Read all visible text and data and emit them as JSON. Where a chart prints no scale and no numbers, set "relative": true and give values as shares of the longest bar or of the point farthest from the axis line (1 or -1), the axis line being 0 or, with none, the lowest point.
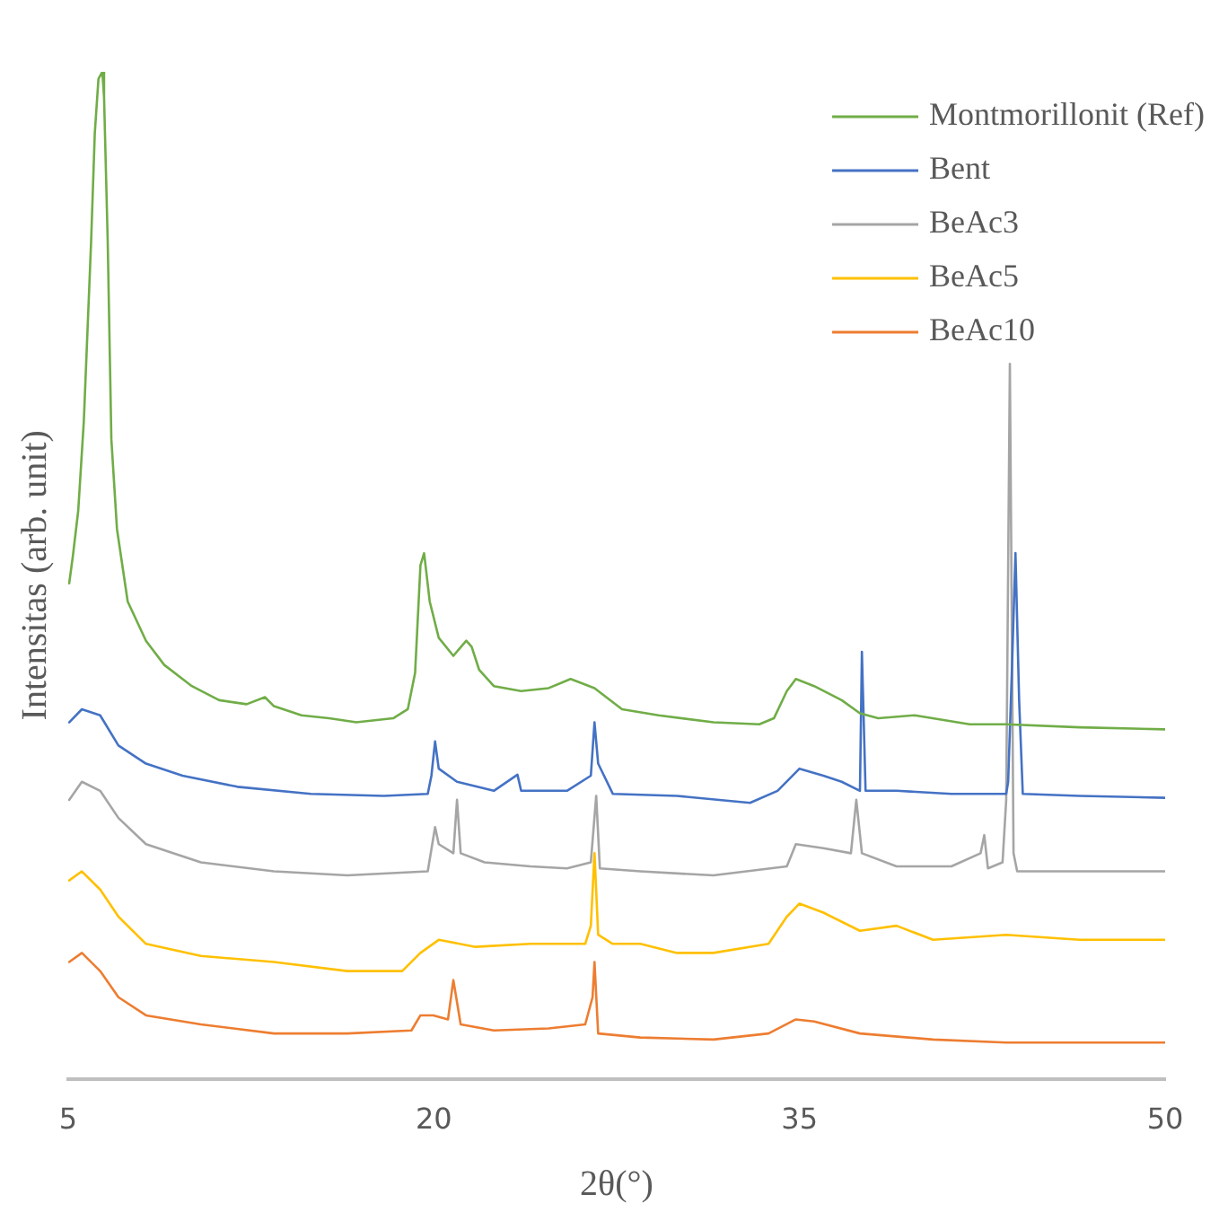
{
  "chart_data": {
    "type": "line",
    "xlabel": "2θ(°)",
    "ylabel": "Intensitas (arb. unit)",
    "relative": true,
    "xlim": [
      5,
      50
    ],
    "xticks": [
      5,
      20,
      35,
      50
    ],
    "grid": false,
    "legend": "top right",
    "marker": "none",
    "line_style": "solid",
    "series": [
      {
        "name": "Montmorillonit (Ref)",
        "color": "#70ad47",
        "x": [
          5.04,
          5.19,
          5.41,
          5.64,
          5.94,
          6.09,
          6.24,
          6.4,
          6.47,
          6.62,
          6.77,
          7.0,
          7.44,
          8.19,
          8.94,
          10.07,
          11.19,
          12.32,
          13.07,
          13.44,
          14.57,
          15.7,
          16.82,
          18.33,
          18.93,
          19.23,
          19.45,
          19.6,
          19.83,
          20.2,
          20.8,
          21.33,
          21.55,
          21.86,
          22.46,
          23.58,
          24.71,
          25.61,
          26.59,
          27.72,
          29.22,
          31.47,
          33.35,
          33.95,
          34.48,
          34.85,
          35.6,
          36.73,
          37.48,
          38.23,
          39.73,
          41.98,
          43.48,
          46.49,
          50
        ],
        "values": [
          0.492,
          0.519,
          0.564,
          0.653,
          0.832,
          0.939,
          0.993,
          1,
          0.975,
          0.832,
          0.635,
          0.546,
          0.474,
          0.435,
          0.411,
          0.39,
          0.376,
          0.372,
          0.379,
          0.37,
          0.361,
          0.358,
          0.354,
          0.358,
          0.367,
          0.403,
          0.51,
          0.522,
          0.474,
          0.438,
          0.42,
          0.435,
          0.429,
          0.406,
          0.39,
          0.385,
          0.388,
          0.397,
          0.388,
          0.367,
          0.361,
          0.354,
          0.352,
          0.358,
          0.385,
          0.397,
          0.39,
          0.376,
          0.363,
          0.358,
          0.361,
          0.352,
          0.352,
          0.349,
          0.347
        ]
      },
      {
        "name": "Bent",
        "color": "#4472c4",
        "x": [
          5.04,
          5.56,
          6.31,
          7.06,
          8.19,
          9.69,
          11.94,
          14.95,
          17.95,
          19.75,
          19.9,
          20.05,
          20.2,
          20.95,
          22.46,
          23.43,
          23.58,
          25.46,
          26.44,
          26.59,
          26.74,
          27.34,
          29.97,
          32.97,
          34.1,
          35.0,
          35.98,
          36.73,
          37.48,
          37.56,
          37.71,
          38.98,
          41.23,
          43.48,
          43.56,
          43.71,
          43.86,
          44.01,
          44.16,
          46.49,
          50
        ],
        "values": [
          0.354,
          0.367,
          0.361,
          0.331,
          0.313,
          0.301,
          0.29,
          0.283,
          0.281,
          0.283,
          0.301,
          0.335,
          0.308,
          0.295,
          0.286,
          0.302,
          0.286,
          0.286,
          0.301,
          0.354,
          0.313,
          0.283,
          0.281,
          0.274,
          0.286,
          0.308,
          0.301,
          0.295,
          0.286,
          0.424,
          0.286,
          0.286,
          0.283,
          0.283,
          0.295,
          0.403,
          0.522,
          0.376,
          0.283,
          0.281,
          0.279
        ]
      },
      {
        "name": "BeAc3",
        "color": "#a5a5a5",
        "x": [
          5.04,
          5.56,
          6.31,
          7.06,
          8.19,
          10.44,
          13.44,
          16.45,
          19.75,
          20.05,
          20.2,
          20.8,
          20.95,
          21.1,
          22.08,
          23.96,
          25.46,
          26.44,
          26.66,
          26.81,
          28.47,
          31.47,
          34.48,
          34.85,
          35.98,
          37.11,
          37.33,
          37.56,
          38.98,
          41.23,
          42.43,
          42.58,
          42.73,
          43.33,
          43.48,
          43.63,
          43.78,
          43.93,
          46.49,
          50
        ],
        "values": [
          0.277,
          0.295,
          0.286,
          0.259,
          0.233,
          0.215,
          0.206,
          0.202,
          0.206,
          0.25,
          0.233,
          0.224,
          0.277,
          0.224,
          0.215,
          0.211,
          0.209,
          0.215,
          0.281,
          0.209,
          0.206,
          0.202,
          0.211,
          0.233,
          0.229,
          0.224,
          0.277,
          0.224,
          0.211,
          0.211,
          0.224,
          0.242,
          0.209,
          0.215,
          0.277,
          0.71,
          0.224,
          0.206,
          0.206,
          0.206
        ]
      },
      {
        "name": "BeAc5",
        "color": "#ffc000",
        "x": [
          5.04,
          5.56,
          6.31,
          7.06,
          8.19,
          10.44,
          13.44,
          16.45,
          18.7,
          19.45,
          20.2,
          21.71,
          23.96,
          26.21,
          26.44,
          26.59,
          26.74,
          27.34,
          28.47,
          29.97,
          31.47,
          33.73,
          34.48,
          35.0,
          35.98,
          37.48,
          38.98,
          40.48,
          43.48,
          46.49,
          50
        ],
        "values": [
          0.197,
          0.206,
          0.188,
          0.161,
          0.134,
          0.122,
          0.116,
          0.107,
          0.107,
          0.125,
          0.138,
          0.131,
          0.134,
          0.134,
          0.152,
          0.224,
          0.143,
          0.134,
          0.134,
          0.125,
          0.125,
          0.134,
          0.161,
          0.174,
          0.165,
          0.147,
          0.152,
          0.138,
          0.143,
          0.138,
          0.138
        ]
      },
      {
        "name": "BeAc10",
        "color": "#ed7d31",
        "x": [
          5.04,
          5.56,
          6.31,
          7.06,
          8.19,
          10.44,
          13.44,
          16.45,
          19.08,
          19.45,
          19.98,
          20.58,
          20.8,
          21.1,
          22.46,
          24.71,
          26.21,
          26.51,
          26.59,
          26.74,
          28.47,
          31.47,
          33.73,
          34.85,
          35.6,
          37.48,
          40.48,
          43.48,
          46.49,
          50
        ],
        "values": [
          0.116,
          0.125,
          0.107,
          0.081,
          0.063,
          0.054,
          0.045,
          0.045,
          0.048,
          0.063,
          0.063,
          0.059,
          0.098,
          0.054,
          0.048,
          0.05,
          0.054,
          0.081,
          0.116,
          0.045,
          0.041,
          0.039,
          0.045,
          0.059,
          0.057,
          0.045,
          0.039,
          0.036,
          0.036,
          0.036
        ]
      }
    ]
  }
}
